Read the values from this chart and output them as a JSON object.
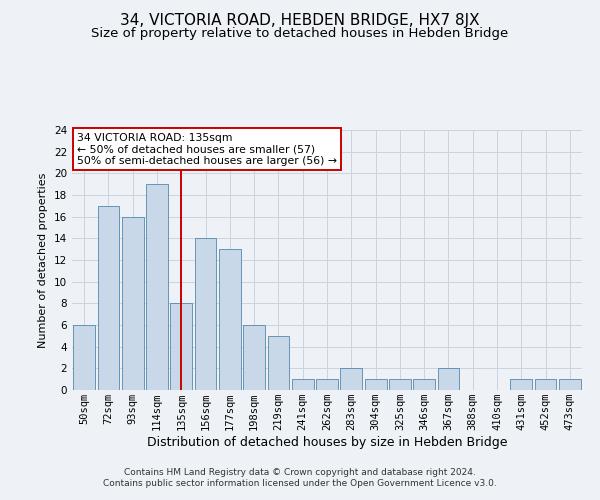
{
  "title": "34, VICTORIA ROAD, HEBDEN BRIDGE, HX7 8JX",
  "subtitle": "Size of property relative to detached houses in Hebden Bridge",
  "xlabel": "Distribution of detached houses by size in Hebden Bridge",
  "ylabel": "Number of detached properties",
  "footer_line1": "Contains HM Land Registry data © Crown copyright and database right 2024.",
  "footer_line2": "Contains public sector information licensed under the Open Government Licence v3.0.",
  "categories": [
    "50sqm",
    "72sqm",
    "93sqm",
    "114sqm",
    "135sqm",
    "156sqm",
    "177sqm",
    "198sqm",
    "219sqm",
    "241sqm",
    "262sqm",
    "283sqm",
    "304sqm",
    "325sqm",
    "346sqm",
    "367sqm",
    "388sqm",
    "410sqm",
    "431sqm",
    "452sqm",
    "473sqm"
  ],
  "values": [
    6,
    17,
    16,
    19,
    8,
    14,
    13,
    6,
    5,
    1,
    1,
    2,
    1,
    1,
    1,
    2,
    0,
    0,
    1,
    1,
    1
  ],
  "bar_color": "#c8d8e8",
  "bar_edge_color": "#5588aa",
  "highlight_index": 4,
  "highlight_line_color": "#cc0000",
  "annotation_text": "34 VICTORIA ROAD: 135sqm\n← 50% of detached houses are smaller (57)\n50% of semi-detached houses are larger (56) →",
  "annotation_box_color": "#ffffff",
  "annotation_box_edge_color": "#cc0000",
  "ylim": [
    0,
    24
  ],
  "yticks": [
    0,
    2,
    4,
    6,
    8,
    10,
    12,
    14,
    16,
    18,
    20,
    22,
    24
  ],
  "grid_color": "#c8d4e0",
  "background_color": "#eef2f6",
  "title_fontsize": 11,
  "subtitle_fontsize": 9.5,
  "xlabel_fontsize": 9,
  "ylabel_fontsize": 8,
  "tick_fontsize": 7.5,
  "footer_fontsize": 6.5
}
